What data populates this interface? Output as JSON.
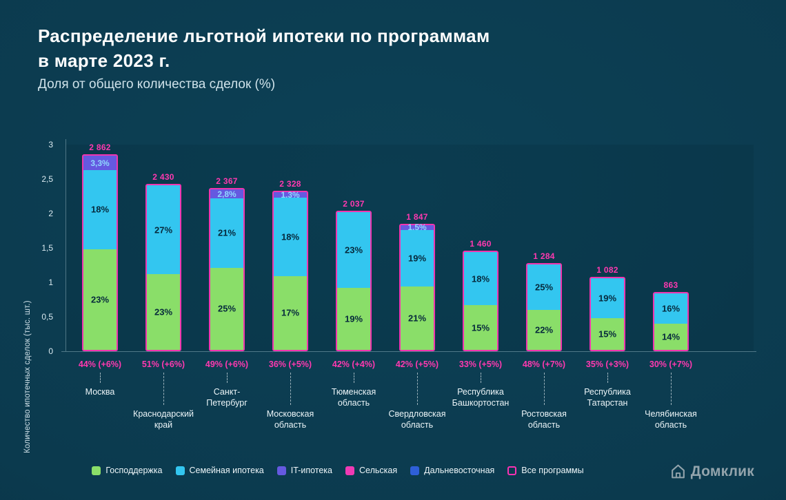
{
  "header": {
    "title_line1": "Распределение льготной ипотеки по программам",
    "title_line2": "в марте 2023 г.",
    "subtitle": "Доля от общего количества сделок (%)"
  },
  "y_axis": {
    "title": "Количество ипотечных сделок (тыс. шт.)",
    "ticks": [
      {
        "value": 3,
        "label": "3"
      },
      {
        "value": 2.5,
        "label": "2,5"
      },
      {
        "value": 2,
        "label": "2"
      },
      {
        "value": 1.5,
        "label": "1,5"
      },
      {
        "value": 1,
        "label": "1"
      },
      {
        "value": 0.5,
        "label": "0,5"
      },
      {
        "value": 0,
        "label": "0"
      }
    ]
  },
  "chart_data": {
    "type": "bar",
    "stacked": true,
    "ylim": [
      0,
      3
    ],
    "y_unit": "тыс. шт.",
    "series_colors": {
      "Господдержка": "#8ade69",
      "Семейная ипотека": "#33c6f0",
      "IT-ипотека": "#6559e0",
      "Сельская": "#f03ab4",
      "Дальневосточная": "#2e5fd8"
    },
    "bars": [
      {
        "region_lines": [
          "Москва"
        ],
        "label_row": 1,
        "total_thousands": 2.862,
        "total_label": "2 862",
        "share_label": "44% (+6%)",
        "segments": [
          {
            "name": "Господдержка",
            "pct": 23,
            "label": "23%"
          },
          {
            "name": "Семейная ипотека",
            "pct": 18,
            "label": "18%"
          },
          {
            "name": "IT-ипотека",
            "pct": 3.3,
            "label": "3,3%"
          }
        ]
      },
      {
        "region_lines": [
          "Краснодарский",
          "край"
        ],
        "label_row": 2,
        "total_thousands": 2.43,
        "total_label": "2 430",
        "share_label": "51% (+6%)",
        "segments": [
          {
            "name": "Господдержка",
            "pct": 23,
            "label": "23%"
          },
          {
            "name": "Семейная ипотека",
            "pct": 27,
            "label": "27%"
          }
        ]
      },
      {
        "region_lines": [
          "Санкт-Петербург"
        ],
        "label_row": 1,
        "total_thousands": 2.367,
        "total_label": "2 367",
        "share_label": "49% (+6%)",
        "segments": [
          {
            "name": "Господдержка",
            "pct": 25,
            "label": "25%"
          },
          {
            "name": "Семейная ипотека",
            "pct": 21,
            "label": "21%"
          },
          {
            "name": "IT-ипотека",
            "pct": 2.8,
            "label": "2,8%"
          }
        ]
      },
      {
        "region_lines": [
          "Московская",
          "область"
        ],
        "label_row": 2,
        "total_thousands": 2.328,
        "total_label": "2 328",
        "share_label": "36% (+5%)",
        "segments": [
          {
            "name": "Господдержка",
            "pct": 17,
            "label": "17%"
          },
          {
            "name": "Семейная ипотека",
            "pct": 18,
            "label": "18%"
          },
          {
            "name": "IT-ипотека",
            "pct": 1.3,
            "label": "1,3%"
          }
        ]
      },
      {
        "region_lines": [
          "Тюменская",
          "область"
        ],
        "label_row": 1,
        "total_thousands": 2.037,
        "total_label": "2 037",
        "share_label": "42% (+4%)",
        "segments": [
          {
            "name": "Господдержка",
            "pct": 19,
            "label": "19%"
          },
          {
            "name": "Семейная ипотека",
            "pct": 23,
            "label": "23%"
          }
        ]
      },
      {
        "region_lines": [
          "Свердловская",
          "область"
        ],
        "label_row": 2,
        "total_thousands": 1.847,
        "total_label": "1 847",
        "share_label": "42% (+5%)",
        "segments": [
          {
            "name": "Господдержка",
            "pct": 21,
            "label": "21%"
          },
          {
            "name": "Семейная ипотека",
            "pct": 19,
            "label": "19%"
          },
          {
            "name": "IT-ипотека",
            "pct": 1.5,
            "label": "1,5%"
          }
        ]
      },
      {
        "region_lines": [
          "Республика",
          "Башкортостан"
        ],
        "label_row": 1,
        "total_thousands": 1.46,
        "total_label": "1 460",
        "share_label": "33% (+5%)",
        "segments": [
          {
            "name": "Господдержка",
            "pct": 15,
            "label": "15%"
          },
          {
            "name": "Семейная ипотека",
            "pct": 18,
            "label": "18%"
          }
        ]
      },
      {
        "region_lines": [
          "Ростовская",
          "область"
        ],
        "label_row": 2,
        "total_thousands": 1.284,
        "total_label": "1 284",
        "share_label": "48% (+7%)",
        "segments": [
          {
            "name": "Господдержка",
            "pct": 22,
            "label": "22%"
          },
          {
            "name": "Семейная ипотека",
            "pct": 25,
            "label": "25%"
          }
        ]
      },
      {
        "region_lines": [
          "Республика",
          "Татарстан"
        ],
        "label_row": 1,
        "total_thousands": 1.082,
        "total_label": "1 082",
        "share_label": "35% (+3%)",
        "segments": [
          {
            "name": "Господдержка",
            "pct": 15,
            "label": "15%"
          },
          {
            "name": "Семейная ипотека",
            "pct": 19,
            "label": "19%"
          }
        ]
      },
      {
        "region_lines": [
          "Челябинская",
          "область"
        ],
        "label_row": 2,
        "total_thousands": 0.863,
        "total_label": "863",
        "share_label": "30% (+7%)",
        "segments": [
          {
            "name": "Господдержка",
            "pct": 14,
            "label": "14%"
          },
          {
            "name": "Семейная ипотека",
            "pct": 16,
            "label": "16%"
          }
        ]
      }
    ]
  },
  "legend": [
    {
      "label": "Господдержка",
      "color": "#8ade69",
      "filled": true
    },
    {
      "label": "Семейная ипотека",
      "color": "#33c6f0",
      "filled": true
    },
    {
      "label": "IT-ипотека",
      "color": "#6559e0",
      "filled": true
    },
    {
      "label": "Сельская",
      "color": "#f03ab4",
      "filled": true
    },
    {
      "label": "Дальневосточная",
      "color": "#2e5fd8",
      "filled": true
    },
    {
      "label": "Все программы",
      "color": "#fb32b3",
      "filled": false
    }
  ],
  "logo": {
    "text": "Домклик"
  },
  "style": {
    "outline_color": "#f234af",
    "accent_pink": "#ff39b0"
  }
}
